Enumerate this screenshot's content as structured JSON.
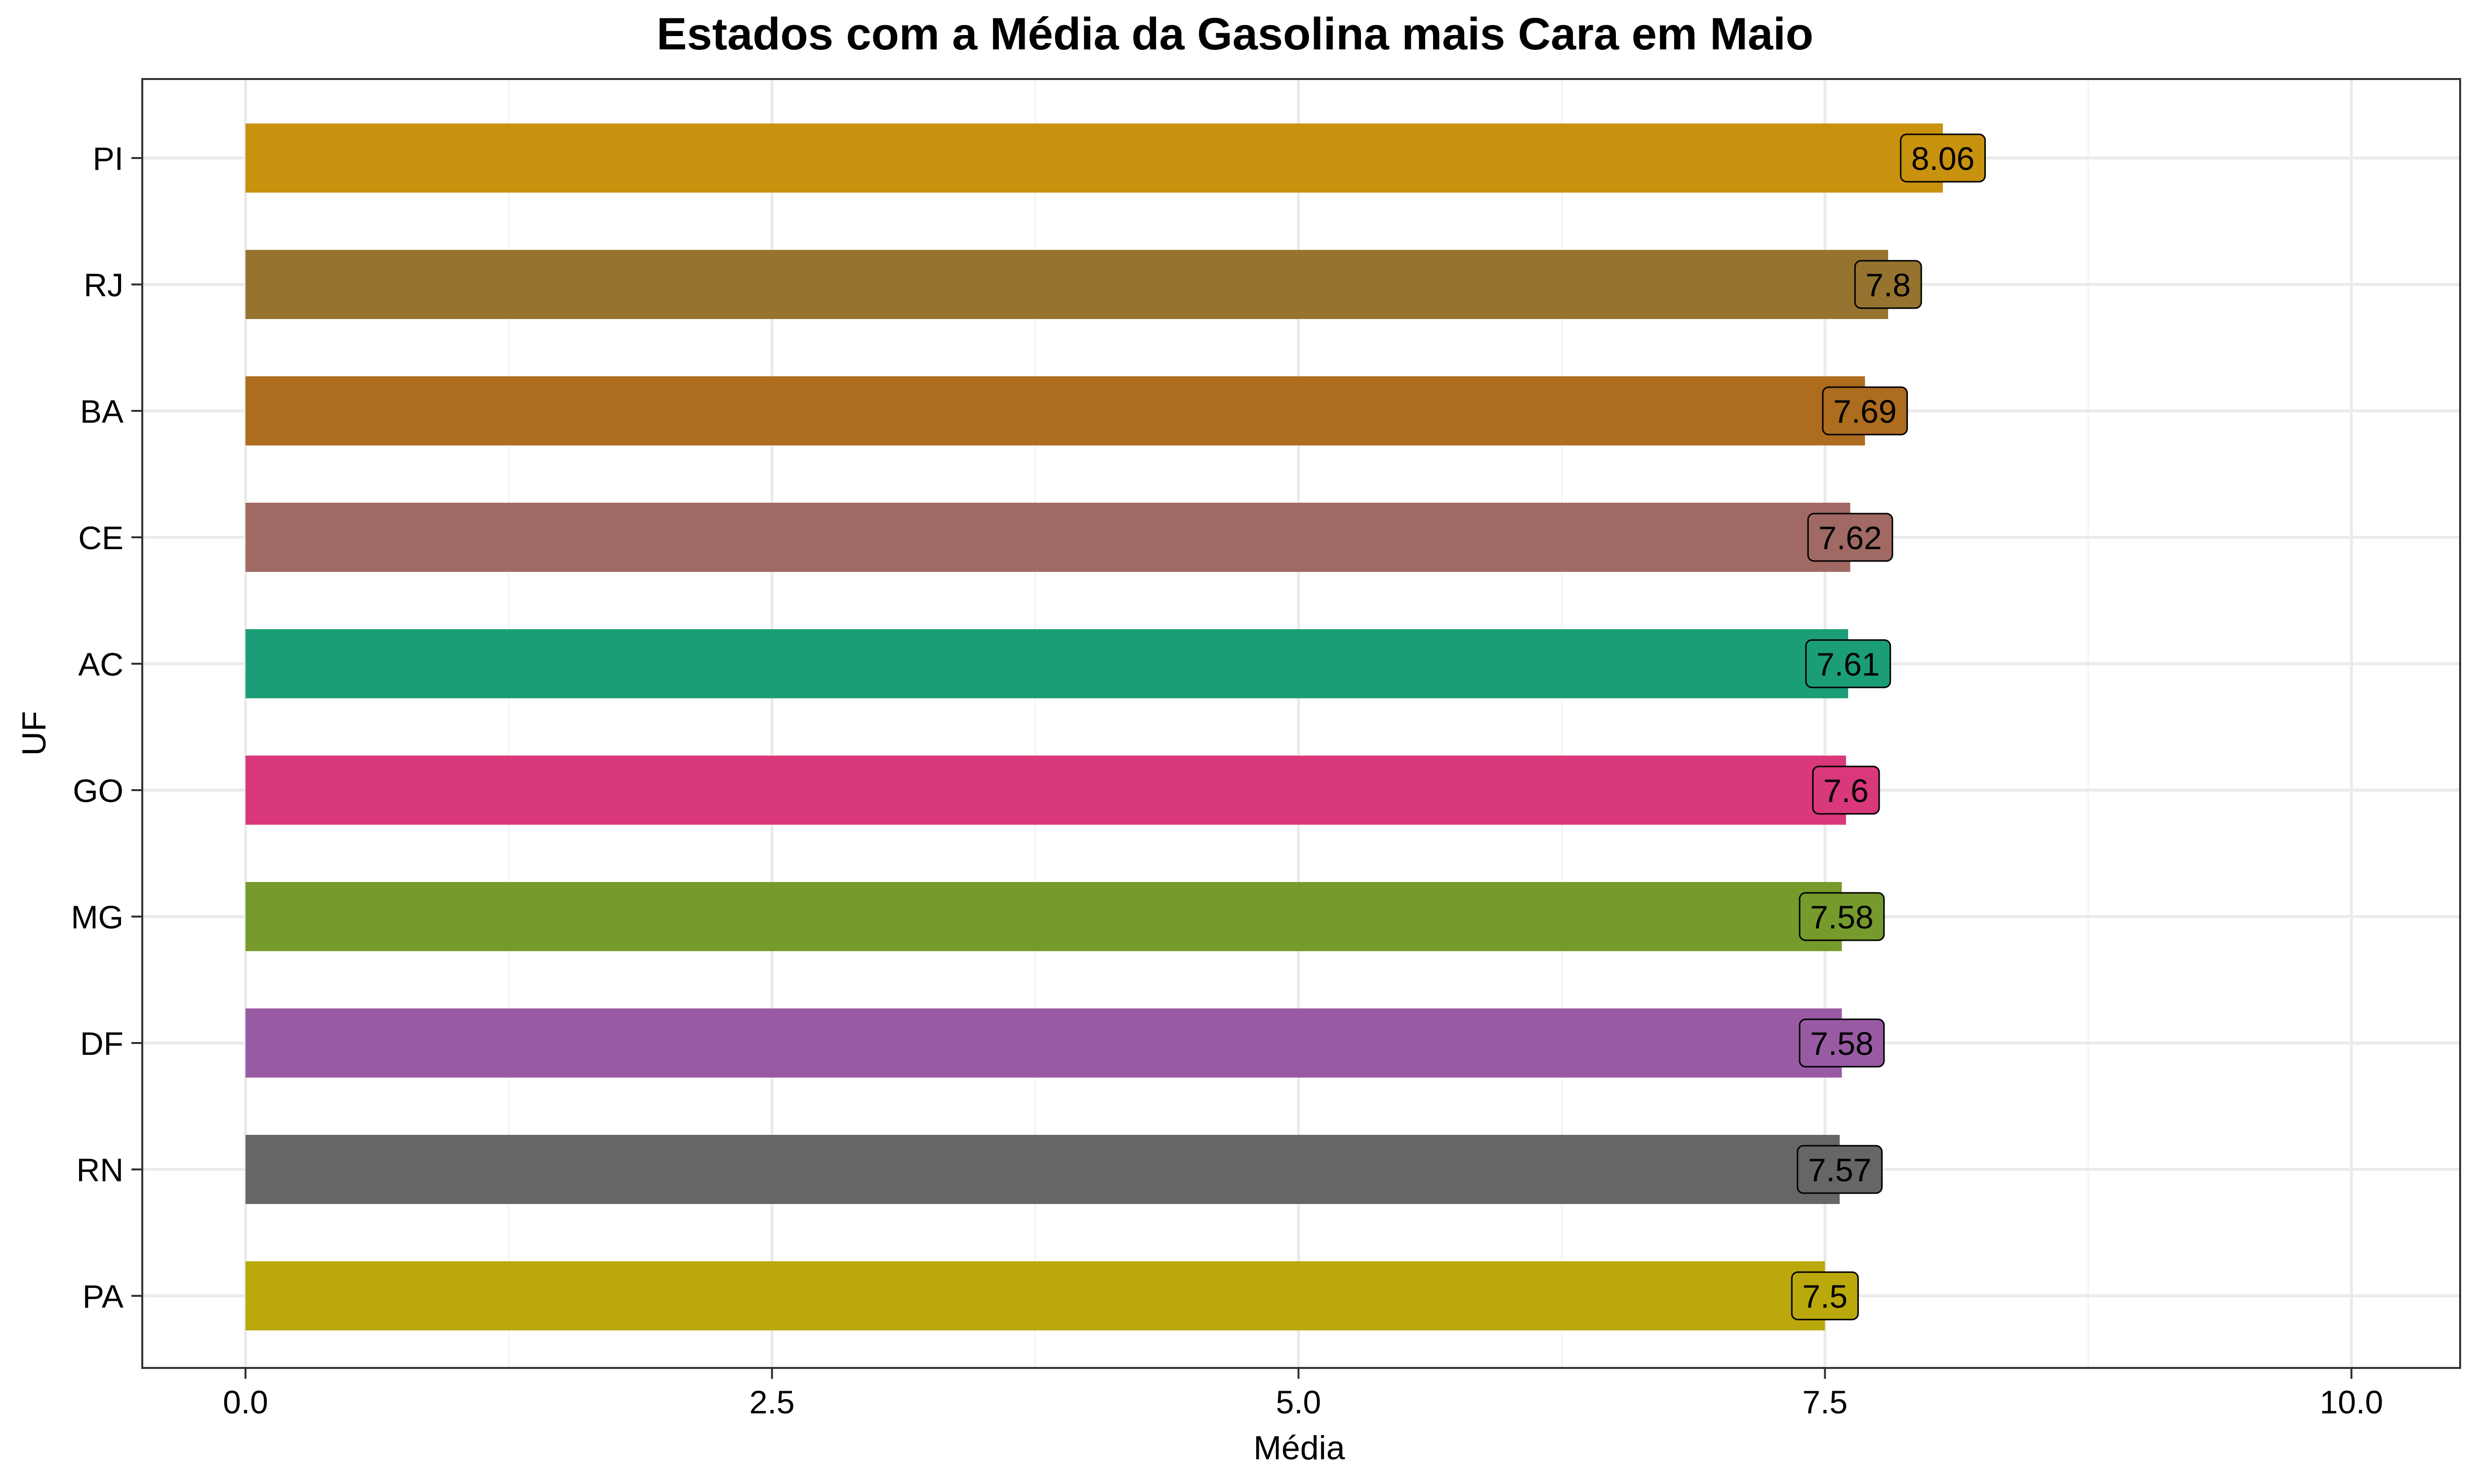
{
  "chart_data": {
    "type": "bar",
    "orientation": "horizontal",
    "title": "Estados com a Média da Gasolina mais Cara em Maio",
    "xlabel": "Média",
    "ylabel": "UF",
    "xlim": [
      0,
      10
    ],
    "x_ticks": [
      "0.0",
      "2.5",
      "5.0",
      "7.5",
      "10.0"
    ],
    "grid": true,
    "categories": [
      "PI",
      "RJ",
      "BA",
      "CE",
      "AC",
      "GO",
      "MG",
      "DF",
      "RN",
      "PA"
    ],
    "values": [
      8.06,
      7.8,
      7.69,
      7.62,
      7.61,
      7.6,
      7.58,
      7.58,
      7.57,
      7.5
    ],
    "labels": [
      "8.06",
      "7.8",
      "7.69",
      "7.62",
      "7.61",
      "7.6",
      "7.58",
      "7.58",
      "7.57",
      "7.5"
    ],
    "colors": [
      "#C8920E",
      "#967430",
      "#AD6C1E",
      "#A06964",
      "#1B9E77",
      "#D9387A",
      "#769A2C",
      "#995AA4",
      "#666666",
      "#BBA80C"
    ]
  }
}
